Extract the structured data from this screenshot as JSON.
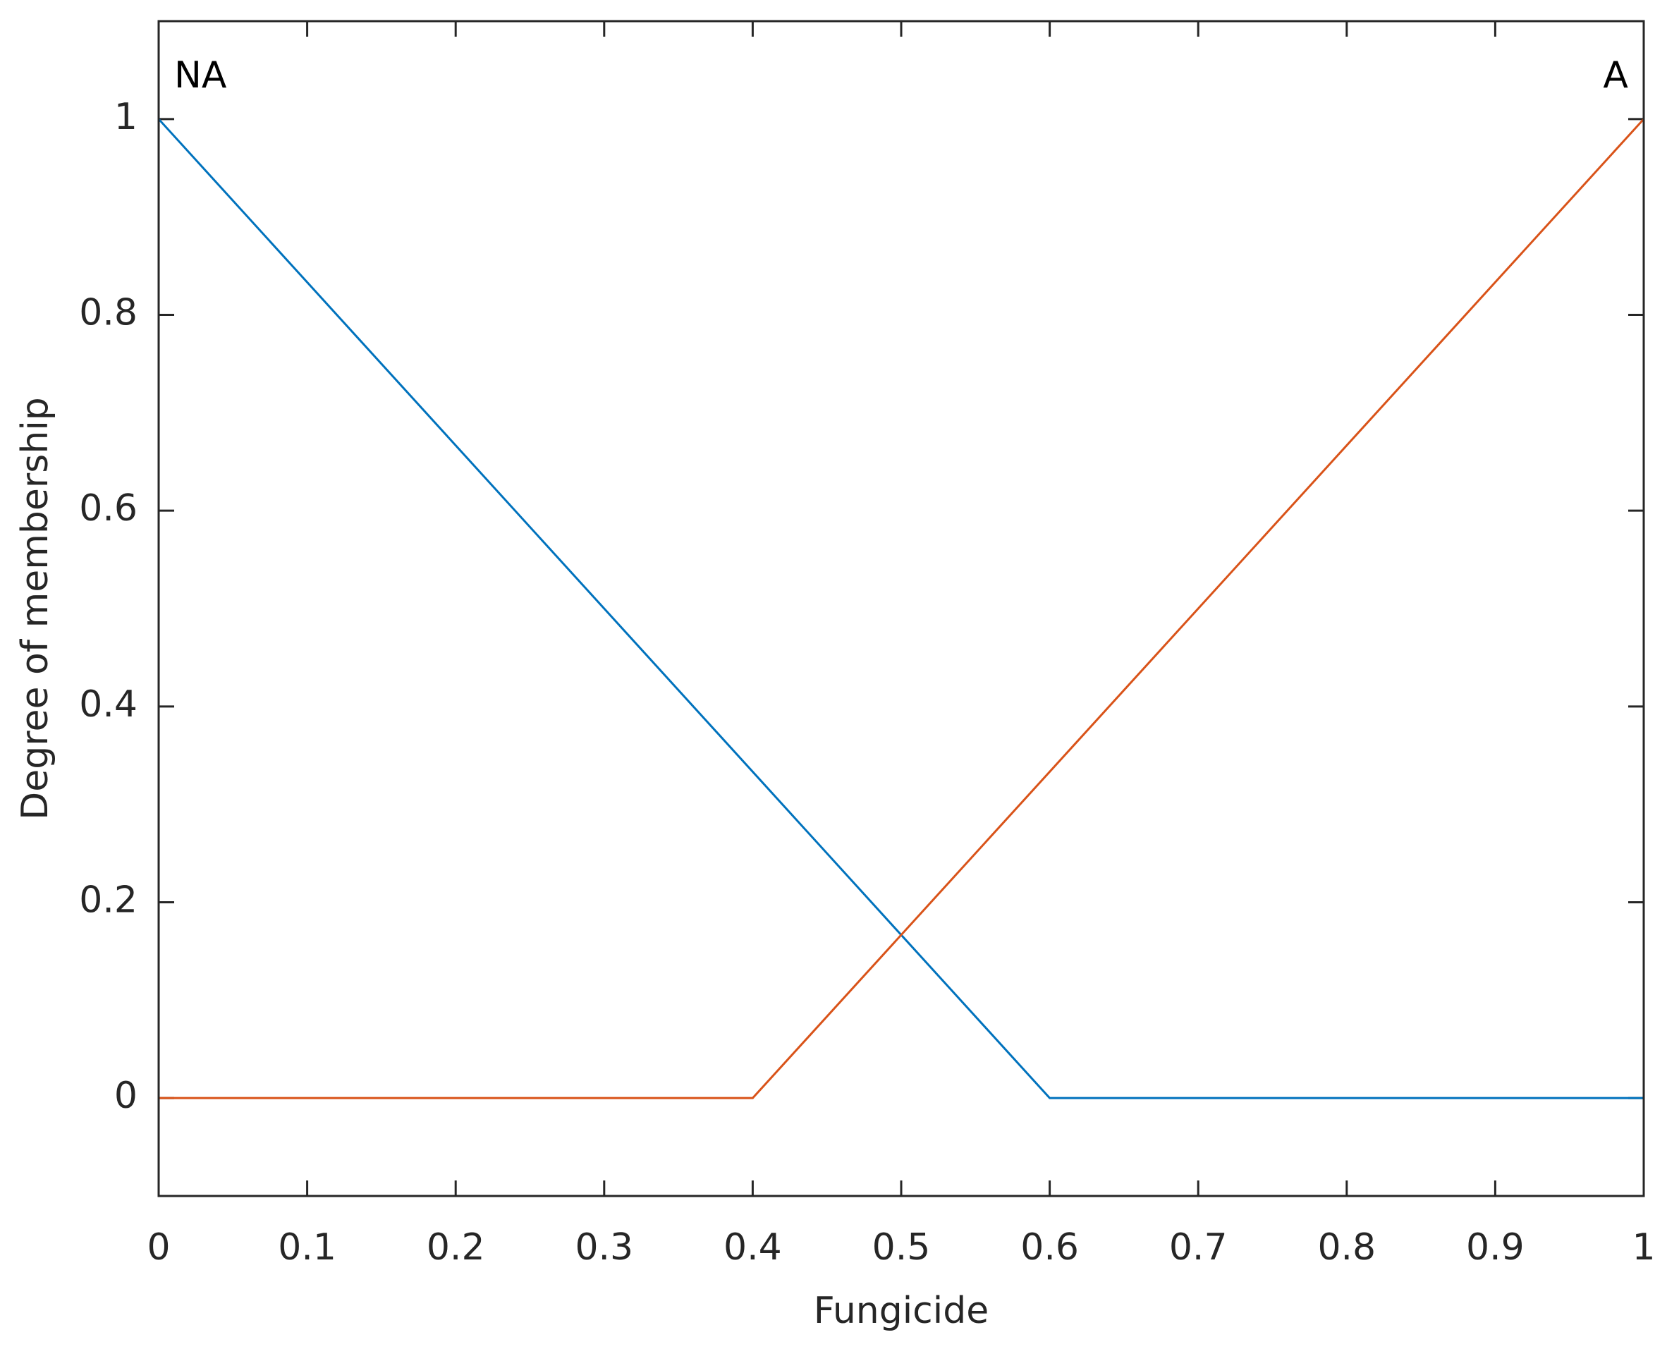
{
  "chart_data": {
    "type": "line",
    "xlabel": "Fungicide",
    "ylabel": "Degree of membership",
    "xlim": [
      0,
      1
    ],
    "ylim": [
      -0.1,
      1.1
    ],
    "xticks": [
      0,
      0.1,
      0.2,
      0.3,
      0.4,
      0.5,
      0.6,
      0.7,
      0.8,
      0.9,
      1
    ],
    "yticks": [
      0,
      0.2,
      0.4,
      0.6,
      0.8,
      1
    ],
    "grid": false,
    "series": [
      {
        "name": "NA",
        "color": "#0072bd",
        "x": [
          0,
          0.6,
          1
        ],
        "values": [
          1,
          0,
          0
        ]
      },
      {
        "name": "A",
        "color": "#d95319",
        "x": [
          0,
          0.4,
          1
        ],
        "values": [
          0,
          0,
          1
        ]
      }
    ]
  }
}
